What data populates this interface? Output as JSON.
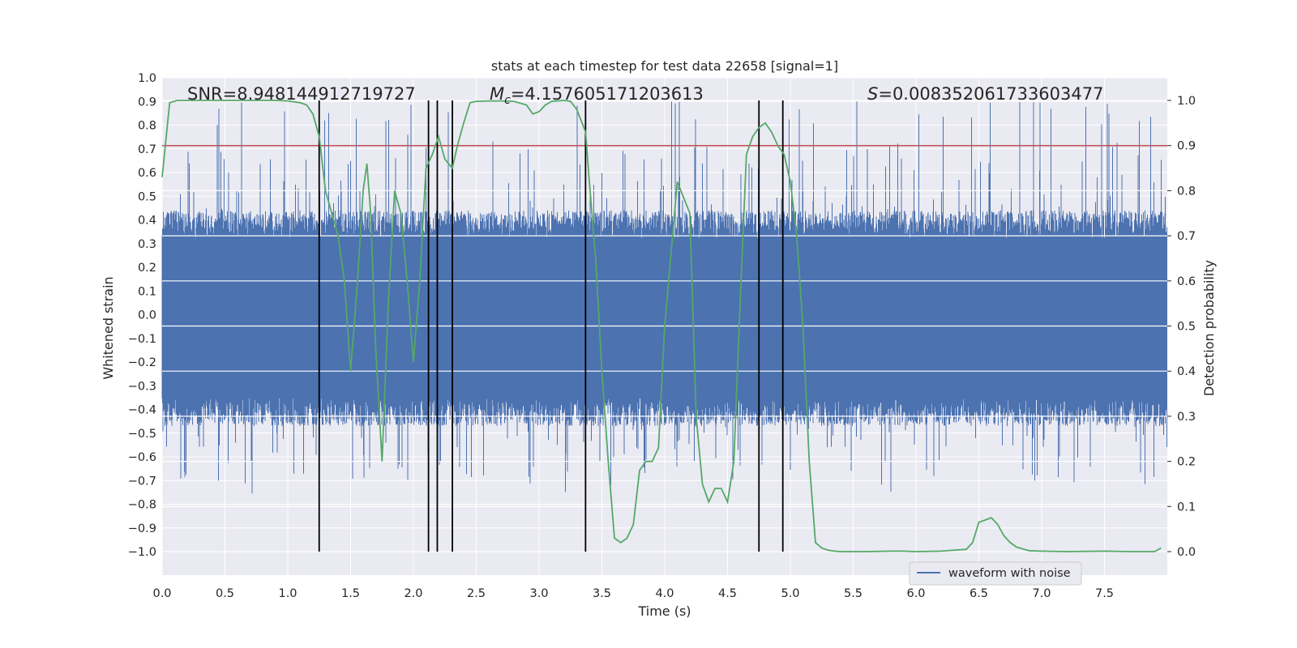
{
  "chart_data": {
    "type": "line",
    "title": "stats at each timestep for test data 22658 [signal=1]",
    "xlabel": "Time (s)",
    "ylabel": "Whitened strain",
    "y2label": "Detection probability",
    "xlim": [
      0.0,
      8.0
    ],
    "ylim": [
      -1.0,
      1.0
    ],
    "y2lim": [
      0.0,
      1.0
    ],
    "x_ticks": [
      "0.0",
      "0.5",
      "1.0",
      "1.5",
      "2.0",
      "2.5",
      "3.0",
      "3.5",
      "4.0",
      "4.5",
      "5.0",
      "5.5",
      "6.0",
      "6.5",
      "7.0",
      "7.5"
    ],
    "y_ticks": [
      "1.0",
      "0.9",
      "0.8",
      "0.7",
      "0.6",
      "0.5",
      "0.4",
      "0.3",
      "0.2",
      "0.1",
      "0.0",
      "−0.1",
      "−0.2",
      "−0.3",
      "−0.4",
      "−0.5",
      "−0.6",
      "−0.7",
      "−0.8",
      "−0.9",
      "−1.0"
    ],
    "y2_ticks": [
      "1.0",
      "0.9",
      "0.8",
      "0.7",
      "0.6",
      "0.5",
      "0.4",
      "0.3",
      "0.2",
      "0.1",
      "0.0"
    ],
    "annotations": {
      "snr": "SNR=8.948144912719727",
      "mc_symbol": "M",
      "mc_sub": "c",
      "mc_value": "=4.157605171203613",
      "s_symbol": "S",
      "s_value": "=0.008352061733603477"
    },
    "threshold": {
      "value": 0.9,
      "axis": "y2",
      "color": "#c44e52"
    },
    "vertical_markers": [
      1.25,
      2.12,
      2.19,
      2.31,
      3.37,
      4.75,
      4.94
    ],
    "waveform": {
      "name": "waveform with noise",
      "color": "#4c72b0",
      "sample_rate_hz": 1000,
      "typical_peak": 0.6,
      "max_peak": 0.9
    },
    "probability": {
      "color": "#55a868",
      "x": [
        0.0,
        0.06,
        0.12,
        0.2,
        0.3,
        0.5,
        0.7,
        0.9,
        1.0,
        1.1,
        1.15,
        1.2,
        1.25,
        1.3,
        1.35,
        1.4,
        1.45,
        1.5,
        1.55,
        1.6,
        1.63,
        1.66,
        1.7,
        1.75,
        1.8,
        1.85,
        1.9,
        1.95,
        2.0,
        2.05,
        2.1,
        2.15,
        2.2,
        2.25,
        2.31,
        2.35,
        2.4,
        2.45,
        2.5,
        2.6,
        2.7,
        2.8,
        2.9,
        2.95,
        3.0,
        3.05,
        3.1,
        3.2,
        3.25,
        3.3,
        3.37,
        3.4,
        3.45,
        3.5,
        3.55,
        3.6,
        3.65,
        3.7,
        3.75,
        3.8,
        3.85,
        3.9,
        3.95,
        4.0,
        4.1,
        4.2,
        4.25,
        4.3,
        4.35,
        4.4,
        4.45,
        4.5,
        4.55,
        4.6,
        4.65,
        4.7,
        4.75,
        4.8,
        4.85,
        4.9,
        4.95,
        5.0,
        5.05,
        5.1,
        5.15,
        5.2,
        5.25,
        5.3,
        5.35,
        5.4,
        5.5,
        5.6,
        5.8,
        5.9,
        6.0,
        6.2,
        6.4,
        6.45,
        6.5,
        6.55,
        6.6,
        6.65,
        6.7,
        6.75,
        6.8,
        6.9,
        7.0,
        7.2,
        7.5,
        7.7,
        7.9,
        7.95
      ],
      "y": [
        0.83,
        0.995,
        1.0,
        1.0,
        1.0,
        1.0,
        1.0,
        1.0,
        0.999,
        0.995,
        0.99,
        0.97,
        0.92,
        0.8,
        0.75,
        0.7,
        0.6,
        0.4,
        0.58,
        0.8,
        0.86,
        0.75,
        0.45,
        0.2,
        0.55,
        0.8,
        0.75,
        0.6,
        0.42,
        0.6,
        0.85,
        0.88,
        0.92,
        0.87,
        0.85,
        0.9,
        0.95,
        0.995,
        0.998,
        0.999,
        0.999,
        0.998,
        0.99,
        0.97,
        0.975,
        0.99,
        0.998,
        1.0,
        0.998,
        0.98,
        0.93,
        0.82,
        0.65,
        0.4,
        0.2,
        0.03,
        0.02,
        0.03,
        0.06,
        0.18,
        0.2,
        0.2,
        0.23,
        0.5,
        0.82,
        0.75,
        0.3,
        0.15,
        0.11,
        0.14,
        0.14,
        0.11,
        0.2,
        0.55,
        0.88,
        0.92,
        0.94,
        0.95,
        0.93,
        0.9,
        0.88,
        0.82,
        0.7,
        0.5,
        0.2,
        0.02,
        0.008,
        0.003,
        0.001,
        0.0,
        0.0,
        0.0,
        0.001,
        0.001,
        0.0,
        0.001,
        0.005,
        0.02,
        0.065,
        0.07,
        0.075,
        0.06,
        0.035,
        0.02,
        0.01,
        0.002,
        0.001,
        0.0,
        0.001,
        0.0,
        0.0,
        0.008
      ]
    },
    "grid": true,
    "legend_position": "bottom-right",
    "legend": [
      {
        "name": "waveform with noise",
        "color": "#4c72b0"
      }
    ]
  }
}
